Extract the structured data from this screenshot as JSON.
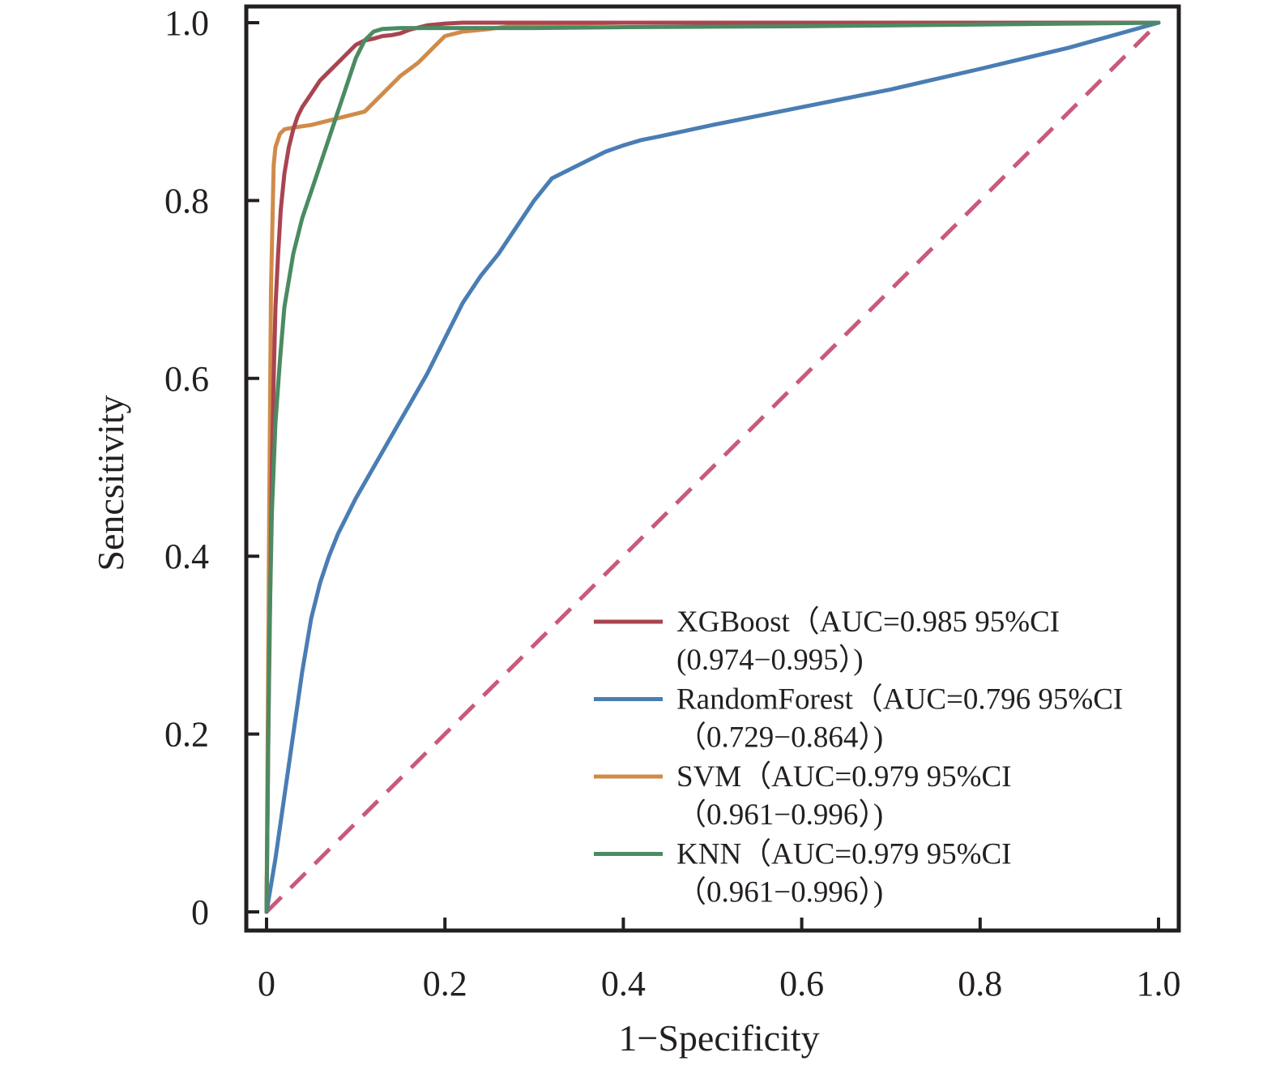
{
  "chart_data": {
    "type": "line",
    "xlabel": "1−Specificity",
    "ylabel": "Sencsitivity",
    "xlim": [
      0,
      1.0
    ],
    "ylim": [
      0,
      1.0
    ],
    "x_ticks": [
      {
        "value": 0,
        "label": "0"
      },
      {
        "value": 0.2,
        "label": "0.2"
      },
      {
        "value": 0.4,
        "label": "0.4"
      },
      {
        "value": 0.6,
        "label": "0.6"
      },
      {
        "value": 0.8,
        "label": "0.8"
      },
      {
        "value": 1.0,
        "label": "1.0"
      }
    ],
    "y_ticks": [
      {
        "value": 0,
        "label": "0"
      },
      {
        "value": 0.2,
        "label": "0.2"
      },
      {
        "value": 0.4,
        "label": "0.4"
      },
      {
        "value": 0.6,
        "label": "0.6"
      },
      {
        "value": 0.8,
        "label": "0.8"
      },
      {
        "value": 1.0,
        "label": "1.0"
      }
    ],
    "grid": false,
    "legend_position": "bottom-right",
    "reference_line": {
      "x": [
        0,
        1
      ],
      "y": [
        0,
        1
      ],
      "color": "#c85a7a",
      "style": "dashed"
    },
    "series": [
      {
        "name_line1": "XGBoost（AUC=0.985 95%CI",
        "name_line2": "(0.974−0.995）)",
        "color": "#a94450",
        "x": [
          0,
          0.002,
          0.004,
          0.006,
          0.008,
          0.01,
          0.013,
          0.016,
          0.02,
          0.025,
          0.03,
          0.035,
          0.04,
          0.05,
          0.06,
          0.07,
          0.08,
          0.09,
          0.1,
          0.11,
          0.12,
          0.13,
          0.14,
          0.15,
          0.16,
          0.18,
          0.2,
          0.22,
          0.25,
          0.3,
          0.4,
          0.6,
          0.8,
          1.0
        ],
        "y": [
          0,
          0.2,
          0.35,
          0.5,
          0.6,
          0.68,
          0.74,
          0.79,
          0.83,
          0.86,
          0.88,
          0.895,
          0.905,
          0.92,
          0.935,
          0.945,
          0.955,
          0.965,
          0.975,
          0.98,
          0.982,
          0.985,
          0.986,
          0.988,
          0.992,
          0.997,
          0.999,
          1.0,
          1.0,
          1.0,
          1.0,
          1.0,
          1.0,
          1.0
        ]
      },
      {
        "name_line1": "RandomForest（AUC=0.796 95%CI",
        "name_line2": "（0.729−0.864）)",
        "color": "#4a7db4",
        "x": [
          0,
          0.01,
          0.02,
          0.03,
          0.04,
          0.05,
          0.06,
          0.07,
          0.08,
          0.1,
          0.12,
          0.14,
          0.16,
          0.18,
          0.2,
          0.22,
          0.24,
          0.26,
          0.28,
          0.3,
          0.32,
          0.34,
          0.36,
          0.38,
          0.4,
          0.42,
          0.44,
          0.5,
          0.6,
          0.7,
          0.8,
          0.9,
          1.0
        ],
        "y": [
          0,
          0.06,
          0.13,
          0.2,
          0.27,
          0.33,
          0.37,
          0.4,
          0.425,
          0.465,
          0.5,
          0.535,
          0.57,
          0.605,
          0.645,
          0.685,
          0.715,
          0.74,
          0.77,
          0.8,
          0.825,
          0.835,
          0.845,
          0.855,
          0.862,
          0.868,
          0.872,
          0.885,
          0.905,
          0.925,
          0.948,
          0.972,
          1.0
        ]
      },
      {
        "name_line1": "SVM（AUC=0.979 95%CI",
        "name_line2": "（0.961−0.996）)",
        "color": "#d08b4a",
        "x": [
          0,
          0.003,
          0.005,
          0.008,
          0.01,
          0.015,
          0.02,
          0.03,
          0.05,
          0.07,
          0.09,
          0.11,
          0.13,
          0.15,
          0.17,
          0.19,
          0.2,
          0.22,
          0.25,
          0.28,
          0.3,
          0.4,
          0.6,
          0.8,
          1.0
        ],
        "y": [
          0,
          0.45,
          0.7,
          0.84,
          0.86,
          0.875,
          0.88,
          0.882,
          0.885,
          0.89,
          0.895,
          0.9,
          0.92,
          0.94,
          0.955,
          0.975,
          0.985,
          0.99,
          0.993,
          0.997,
          0.998,
          1.0,
          1.0,
          1.0,
          1.0
        ]
      },
      {
        "name_line1": "KNN（AUC=0.979 95%CI",
        "name_line2": "（0.961−0.996）)",
        "color": "#4b8b62",
        "x": [
          0,
          0.003,
          0.006,
          0.01,
          0.015,
          0.02,
          0.03,
          0.04,
          0.05,
          0.06,
          0.07,
          0.08,
          0.09,
          0.1,
          0.11,
          0.12,
          0.13,
          0.15,
          0.2,
          0.3,
          0.4,
          0.6,
          0.8,
          1.0
        ],
        "y": [
          0,
          0.3,
          0.45,
          0.55,
          0.62,
          0.68,
          0.74,
          0.78,
          0.81,
          0.84,
          0.87,
          0.9,
          0.93,
          0.96,
          0.98,
          0.99,
          0.993,
          0.994,
          0.994,
          0.994,
          0.995,
          0.996,
          0.998,
          1.0
        ]
      }
    ]
  }
}
